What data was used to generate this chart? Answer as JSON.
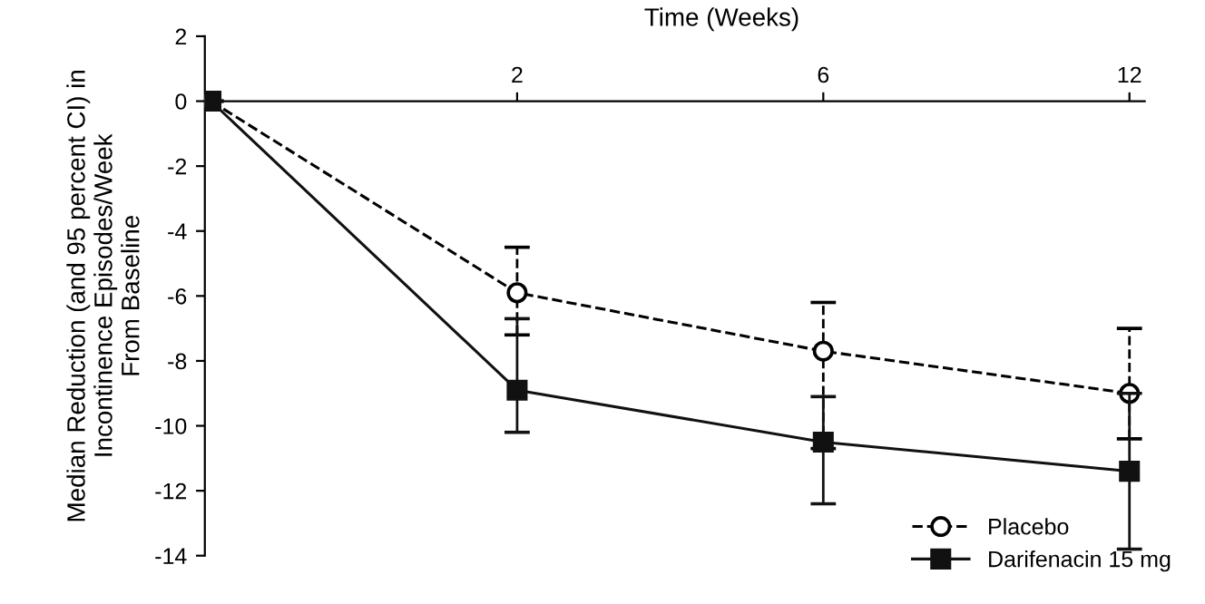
{
  "chart_data": {
    "type": "line",
    "xlabel": "Time (Weeks)",
    "ylabel": "Median Reduction (and 95 percent CI) in\nIncontinence Episodes/Week\nFrom Baseline",
    "categories": [
      null,
      "2",
      "6",
      "12"
    ],
    "ylim": [
      -14,
      2
    ],
    "yticks": [
      -14,
      -12,
      -10,
      -8,
      -6,
      -4,
      -2,
      0,
      2
    ],
    "grid": false,
    "legend": "bottom right",
    "series": [
      {
        "name": "Placebo",
        "color": "#000000",
        "values": [
          0,
          -5.9,
          -7.7,
          -9.0
        ],
        "errors": [
          null,
          [
            -7.2,
            -4.5
          ],
          [
            -10.7,
            -6.2
          ],
          [
            -10.4,
            -7.0
          ]
        ],
        "marker": "circle",
        "line_style": "dashed"
      },
      {
        "name": "Darifenacin 15 mg",
        "color": "#111111",
        "values": [
          0,
          -8.9,
          -10.5,
          -11.4
        ],
        "errors": [
          null,
          [
            -10.2,
            -6.7
          ],
          [
            -12.4,
            -9.1
          ],
          [
            -13.8,
            -9.0
          ]
        ],
        "marker": "square",
        "line_style": "solid"
      }
    ]
  }
}
